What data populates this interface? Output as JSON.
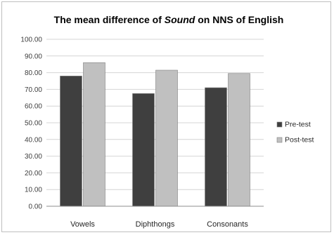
{
  "chart_data": {
    "type": "bar",
    "title_parts": [
      "The mean difference of ",
      "Sound",
      " on NNS of English"
    ],
    "categories": [
      "Vowels",
      "Diphthongs",
      "Consonants"
    ],
    "series": [
      {
        "name": "Pre-test",
        "values": [
          78,
          67.5,
          71
        ],
        "color": "#3f3f3f"
      },
      {
        "name": "Post-test",
        "values": [
          86,
          81.5,
          79.5
        ],
        "color": "#c0c0c0"
      }
    ],
    "yticks": [
      "0.00",
      "10.00",
      "20.00",
      "30.00",
      "40.00",
      "50.00",
      "60.00",
      "70.00",
      "80.00",
      "90.00",
      "100.00"
    ],
    "ylim": [
      0,
      100
    ],
    "grid": true,
    "legend_position": "right"
  }
}
